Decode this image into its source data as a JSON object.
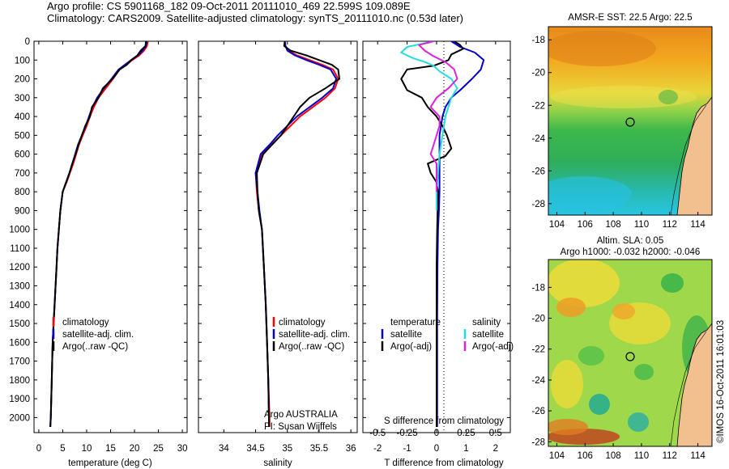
{
  "header": {
    "line1": "Argo profile: CS 5901168_182 09-Oct-2011 20111010_469 22.599S 109.089E",
    "line2": "Climatology: CARS2009. Satellite-adjusted climatology: synTS_20111010.nc (0.53d later)"
  },
  "colors": {
    "climatology": "#ff0000",
    "satellite": "#0000cc",
    "argo": "#000000",
    "satellite_salinity": "#22dddd",
    "argo_salinity": "#dd22dd",
    "land": "#f2bf8f",
    "coast": "#000000"
  },
  "depth_axis": {
    "ticks": [
      0,
      100,
      200,
      300,
      400,
      500,
      600,
      700,
      800,
      900,
      1000,
      1100,
      1200,
      1300,
      1400,
      1500,
      1600,
      1700,
      1800,
      1900,
      2000
    ],
    "ylim": [
      0,
      2080
    ]
  },
  "chart_data": [
    {
      "type": "line",
      "xlabel": "temperature (deg C)",
      "xlim": [
        -1,
        31
      ],
      "xticks": [
        0,
        5,
        10,
        15,
        20,
        25,
        30
      ],
      "legend": [
        "climatology",
        "satellite-adj. clim.",
        "Argo(..raw -QC)"
      ],
      "series": [
        {
          "name": "climatology",
          "color": "#ff0000",
          "x": [
            22.8,
            22.6,
            22.0,
            21.0,
            19.5,
            18.3,
            16.9,
            15.5,
            14.0,
            12.5,
            11.5,
            10.7,
            10.0,
            9.2,
            8.4,
            7.8,
            7.2,
            6.5,
            5.8,
            5.0,
            4.5,
            4.2,
            3.9,
            3.7,
            3.5,
            3.3,
            3.1,
            2.9,
            2.7,
            2.5,
            2.4
          ],
          "y": [
            0,
            25,
            50,
            75,
            100,
            125,
            150,
            200,
            250,
            300,
            350,
            400,
            450,
            500,
            550,
            600,
            650,
            700,
            750,
            800,
            900,
            1000,
            1100,
            1200,
            1300,
            1400,
            1500,
            1600,
            1800,
            2000,
            2050
          ]
        },
        {
          "name": "satellite-adj. clim.",
          "color": "#0000cc",
          "x": [
            22.6,
            22.4,
            21.7,
            20.7,
            19.3,
            18.0,
            16.7,
            15.2,
            13.6,
            12.2,
            11.2,
            10.5,
            9.8,
            9.0,
            8.2,
            7.6,
            7.0,
            6.4,
            5.7,
            5.0,
            4.5,
            4.2,
            3.9,
            3.7,
            3.5,
            3.3,
            3.1,
            2.9,
            2.7,
            2.5,
            2.4
          ],
          "y": [
            0,
            25,
            50,
            75,
            100,
            125,
            150,
            200,
            250,
            300,
            350,
            400,
            450,
            500,
            550,
            600,
            650,
            700,
            750,
            800,
            900,
            1000,
            1100,
            1200,
            1300,
            1400,
            1500,
            1600,
            1800,
            2000,
            2050
          ]
        },
        {
          "name": "Argo(..raw -QC)",
          "color": "#000000",
          "x": [
            22.4,
            22.3,
            21.3,
            20.6,
            19.3,
            18.4,
            16.9,
            15.4,
            13.4,
            12.5,
            11.1,
            10.7,
            9.7,
            9.0,
            8.3,
            7.7,
            7.0,
            6.4,
            5.7,
            5.0,
            4.5,
            4.2,
            3.9,
            3.7,
            3.5,
            3.3,
            3.1,
            2.9,
            2.7,
            2.5,
            2.4
          ],
          "y": [
            0,
            25,
            50,
            75,
            100,
            125,
            150,
            200,
            250,
            300,
            350,
            400,
            450,
            500,
            550,
            600,
            650,
            700,
            750,
            800,
            900,
            1000,
            1100,
            1200,
            1300,
            1400,
            1500,
            1600,
            1800,
            2000,
            2050
          ]
        }
      ]
    },
    {
      "type": "line",
      "xlabel": "salinity",
      "xlim": [
        33.6,
        36.1
      ],
      "xticks": [
        34,
        34.5,
        35,
        35.5,
        36
      ],
      "legend": [
        "climatology",
        "satellite-adj. clim.",
        "Argo(..raw -QC)"
      ],
      "annotations": [
        "Argo AUSTRALIA",
        "PI: Susan Wijffels"
      ],
      "series": [
        {
          "name": "climatology",
          "color": "#ff0000",
          "x": [
            34.96,
            34.97,
            35.02,
            35.15,
            35.35,
            35.55,
            35.72,
            35.8,
            35.75,
            35.6,
            35.4,
            35.2,
            35.05,
            34.9,
            34.75,
            34.6,
            34.5,
            34.52,
            34.55,
            34.6,
            34.63,
            34.66,
            34.68,
            34.7,
            34.72,
            34.72
          ],
          "y": [
            0,
            25,
            50,
            75,
            100,
            125,
            150,
            200,
            250,
            300,
            350,
            400,
            450,
            500,
            550,
            600,
            700,
            800,
            900,
            1000,
            1200,
            1400,
            1600,
            1800,
            2000,
            2050
          ]
        },
        {
          "name": "satellite-adj. clim.",
          "color": "#0000cc",
          "x": [
            34.96,
            34.97,
            35.0,
            35.12,
            35.3,
            35.5,
            35.68,
            35.77,
            35.72,
            35.55,
            35.35,
            35.15,
            35.0,
            34.85,
            34.72,
            34.58,
            34.5,
            34.53,
            34.56,
            34.6,
            34.63,
            34.66,
            34.68,
            34.7,
            34.71,
            34.71
          ],
          "y": [
            0,
            25,
            50,
            75,
            100,
            125,
            150,
            200,
            250,
            300,
            350,
            400,
            450,
            500,
            550,
            600,
            700,
            800,
            900,
            1000,
            1200,
            1400,
            1600,
            1800,
            2000,
            2050
          ]
        },
        {
          "name": "Argo(..raw -QC)",
          "color": "#000000",
          "x": [
            34.96,
            34.95,
            35.05,
            35.3,
            35.5,
            35.7,
            35.8,
            35.82,
            35.6,
            35.35,
            35.2,
            35.1,
            35.0,
            34.9,
            34.76,
            34.62,
            34.52,
            34.53,
            34.55,
            34.6,
            34.63,
            34.66,
            34.68,
            34.7,
            34.71,
            34.71
          ],
          "y": [
            0,
            25,
            50,
            75,
            100,
            125,
            150,
            200,
            250,
            300,
            350,
            400,
            450,
            500,
            550,
            600,
            700,
            800,
            900,
            1000,
            1200,
            1400,
            1600,
            1800,
            2000,
            2050
          ]
        }
      ]
    },
    {
      "type": "line",
      "xlabel": "T difference from climatology",
      "xlabel_top": "S difference from climatology",
      "xlim": [
        -2.5,
        2.5
      ],
      "xticks": [
        -2,
        -1,
        0,
        1,
        2
      ],
      "xticklabels_s": [
        "-0.5",
        "-0.25",
        "0",
        "0.25",
        "0.5"
      ],
      "legend_temperature": {
        "title": "temperature",
        "items": [
          "satellite",
          "Argo(-adj)"
        ]
      },
      "legend_salinity": {
        "title": "salinity",
        "items": [
          "satellite",
          "Argo(-adj)"
        ]
      },
      "series": [
        {
          "name": "satellite",
          "group": "temperature",
          "color": "#0000cc",
          "x": [
            0.5,
            0.8,
            1.3,
            1.6,
            1.5,
            1.2,
            0.8,
            0.5,
            0.3,
            0.2,
            0.15,
            0.1,
            0.1,
            0.1,
            0.1,
            0.08,
            0.05,
            0.03,
            0.02,
            0.02,
            0.02
          ],
          "y": [
            0,
            30,
            60,
            100,
            150,
            200,
            260,
            300,
            350,
            400,
            450,
            500,
            600,
            700,
            800,
            900,
            1000,
            1200,
            1500,
            1800,
            2050
          ]
        },
        {
          "name": "Argo(-adj)",
          "group": "temperature",
          "color": "#000000",
          "x": [
            0.6,
            0.8,
            0.9,
            0.5,
            0.4,
            -0.1,
            -1.0,
            -1.2,
            -1.0,
            -0.5,
            -0.3,
            0.0,
            0.2,
            0.35,
            0.5,
            0.3,
            -0.3,
            -0.2,
            0.0,
            0.05,
            0.02,
            0.0,
            0.0,
            0.0,
            0.0
          ],
          "y": [
            0,
            20,
            40,
            70,
            100,
            130,
            150,
            200,
            260,
            300,
            350,
            400,
            450,
            500,
            570,
            610,
            650,
            700,
            750,
            800,
            1000,
            1200,
            1500,
            1800,
            2050
          ]
        },
        {
          "name": "satellite",
          "group": "salinity",
          "color": "#22dddd",
          "x": [
            -0.1,
            -1.0,
            -1.2,
            -0.8,
            -0.4,
            -0.1,
            0.1,
            0.5,
            0.7,
            0.5,
            0.3,
            0.2,
            0.1,
            0.05,
            0.0,
            0.0
          ],
          "y": [
            0,
            30,
            60,
            90,
            110,
            130,
            160,
            200,
            250,
            300,
            400,
            500,
            600,
            700,
            800,
            900
          ]
        },
        {
          "name": "Argo(-adj)",
          "group": "salinity",
          "color": "#dd22dd",
          "x": [
            -0.1,
            -0.6,
            -0.4,
            -0.1,
            0.3,
            0.6,
            0.7,
            0.4,
            0.0,
            -0.2,
            0.1,
            0.1,
            0.0,
            -0.1,
            -0.2,
            0.0,
            0.0,
            0.0
          ],
          "y": [
            0,
            20,
            50,
            80,
            110,
            150,
            200,
            250,
            300,
            350,
            400,
            450,
            500,
            550,
            600,
            650,
            700,
            800
          ]
        }
      ]
    }
  ],
  "maps": [
    {
      "title": "AMSR-E SST: 22.5 Argo: 22.5",
      "xticks": [
        "104",
        "106",
        "108",
        "110",
        "112",
        "114"
      ],
      "yticks": [
        "-18",
        "-20",
        "-22",
        "-24",
        "-26",
        "-28"
      ],
      "marker": {
        "lon": 109.089,
        "lat": -22.599
      }
    },
    {
      "title_line1": "Altim. SLA: 0.05",
      "title_line2": "Argo h1000: -0.032 h2000: -0.046",
      "xticks": [
        "104",
        "106",
        "108",
        "110",
        "112",
        "114"
      ],
      "yticks": [
        "-18",
        "-20",
        "-22",
        "-24",
        "-26",
        "-28"
      ],
      "marker": {
        "lon": 109.089,
        "lat": -22.599
      }
    }
  ],
  "watermark": "©IMOS 16-Oct-2011 16:01:03"
}
